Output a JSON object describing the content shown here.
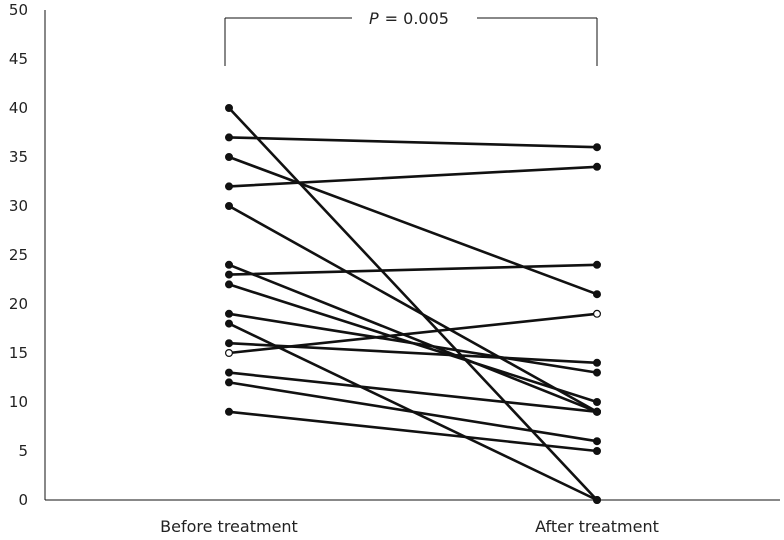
{
  "chart_data": {
    "type": "line",
    "categories": [
      "Before treatment",
      "After treatment"
    ],
    "ylim": [
      0,
      50
    ],
    "yticks": [
      0,
      5,
      10,
      15,
      20,
      25,
      30,
      35,
      40,
      45,
      50
    ],
    "grid": false,
    "legend": "none",
    "annotation": {
      "p_label": "P",
      "p_value": "= 0.005"
    },
    "pairs": [
      {
        "before": 40,
        "after": 0
      },
      {
        "before": 37,
        "after": 36
      },
      {
        "before": 35,
        "after": 21
      },
      {
        "before": 32,
        "after": 34
      },
      {
        "before": 30,
        "after": 9
      },
      {
        "before": 24,
        "after": 9
      },
      {
        "before": 23,
        "after": 24
      },
      {
        "before": 22,
        "after": 10
      },
      {
        "before": 19,
        "after": 13
      },
      {
        "before": 18,
        "after": 0
      },
      {
        "before": 16,
        "after": 14
      },
      {
        "before": 15,
        "after": 19,
        "open": true
      },
      {
        "before": 13,
        "after": 9
      },
      {
        "before": 12,
        "after": 6
      },
      {
        "before": 9,
        "after": 5
      }
    ],
    "colors": {
      "line": "#111111",
      "point": "#111111",
      "axis": "#111111"
    }
  }
}
